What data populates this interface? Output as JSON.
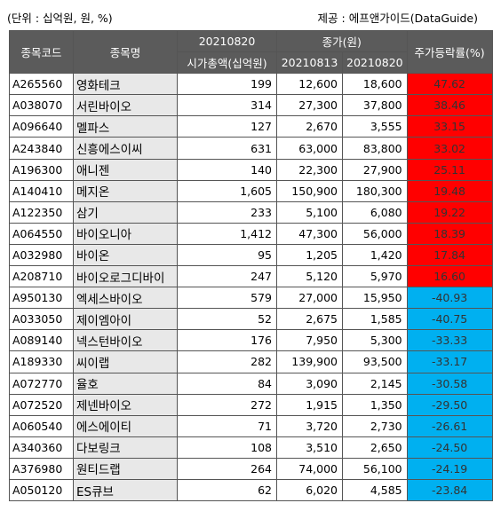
{
  "header": {
    "unit": "(단위 : 십억원, 원, %)",
    "source": "제공 : 에프앤가이드(DataGuide)"
  },
  "columns": {
    "code": "종목코드",
    "name": "종목명",
    "date_top": "20210820",
    "mktcap": "시가총액(십억원)",
    "price": "종가(원)",
    "d1": "20210813",
    "d2": "20210820",
    "change": "주가등락률(%)"
  },
  "rows": [
    {
      "code": "A265560",
      "name": "영화테크",
      "cap": "199",
      "p1": "12,600",
      "p2": "18,600",
      "chg": "47.62",
      "dir": "pos"
    },
    {
      "code": "A038070",
      "name": "서린바이오",
      "cap": "314",
      "p1": "27,300",
      "p2": "37,800",
      "chg": "38.46",
      "dir": "pos"
    },
    {
      "code": "A096640",
      "name": "멜파스",
      "cap": "127",
      "p1": "2,670",
      "p2": "3,555",
      "chg": "33.15",
      "dir": "pos"
    },
    {
      "code": "A243840",
      "name": "신흥에스이씨",
      "cap": "631",
      "p1": "63,000",
      "p2": "83,800",
      "chg": "33.02",
      "dir": "pos"
    },
    {
      "code": "A196300",
      "name": "애니젠",
      "cap": "140",
      "p1": "22,300",
      "p2": "27,900",
      "chg": "25.11",
      "dir": "pos"
    },
    {
      "code": "A140410",
      "name": "메지온",
      "cap": "1,605",
      "p1": "150,900",
      "p2": "180,300",
      "chg": "19.48",
      "dir": "pos"
    },
    {
      "code": "A122350",
      "name": "삼기",
      "cap": "233",
      "p1": "5,100",
      "p2": "6,080",
      "chg": "19.22",
      "dir": "pos"
    },
    {
      "code": "A064550",
      "name": "바이오니아",
      "cap": "1,412",
      "p1": "47,300",
      "p2": "56,000",
      "chg": "18.39",
      "dir": "pos"
    },
    {
      "code": "A032980",
      "name": "바이온",
      "cap": "95",
      "p1": "1,205",
      "p2": "1,420",
      "chg": "17.84",
      "dir": "pos"
    },
    {
      "code": "A208710",
      "name": "바이오로그디바이",
      "cap": "247",
      "p1": "5,120",
      "p2": "5,970",
      "chg": "16.60",
      "dir": "pos"
    },
    {
      "code": "A950130",
      "name": "엑세스바이오",
      "cap": "579",
      "p1": "27,000",
      "p2": "15,950",
      "chg": "-40.93",
      "dir": "neg"
    },
    {
      "code": "A033050",
      "name": "제이엠아이",
      "cap": "52",
      "p1": "2,675",
      "p2": "1,585",
      "chg": "-40.75",
      "dir": "neg"
    },
    {
      "code": "A089140",
      "name": "넥스턴바이오",
      "cap": "176",
      "p1": "7,950",
      "p2": "5,300",
      "chg": "-33.33",
      "dir": "neg"
    },
    {
      "code": "A189330",
      "name": "씨이랩",
      "cap": "282",
      "p1": "139,900",
      "p2": "93,500",
      "chg": "-33.17",
      "dir": "neg"
    },
    {
      "code": "A072770",
      "name": "율호",
      "cap": "84",
      "p1": "3,090",
      "p2": "2,145",
      "chg": "-30.58",
      "dir": "neg"
    },
    {
      "code": "A072520",
      "name": "제넨바이오",
      "cap": "272",
      "p1": "1,915",
      "p2": "1,350",
      "chg": "-29.50",
      "dir": "neg"
    },
    {
      "code": "A060540",
      "name": "에스에이티",
      "cap": "71",
      "p1": "3,720",
      "p2": "2,730",
      "chg": "-26.61",
      "dir": "neg"
    },
    {
      "code": "A340360",
      "name": "다보링크",
      "cap": "108",
      "p1": "3,510",
      "p2": "2,650",
      "chg": "-24.50",
      "dir": "neg"
    },
    {
      "code": "A376980",
      "name": "원티드랩",
      "cap": "264",
      "p1": "74,000",
      "p2": "56,100",
      "chg": "-24.19",
      "dir": "neg"
    },
    {
      "code": "A050120",
      "name": "ES큐브",
      "cap": "62",
      "p1": "6,020",
      "p2": "4,585",
      "chg": "-23.84",
      "dir": "neg"
    }
  ],
  "colors": {
    "positive": "#ff0000",
    "negative": "#00b0f0",
    "header": "#5b5b5b"
  }
}
